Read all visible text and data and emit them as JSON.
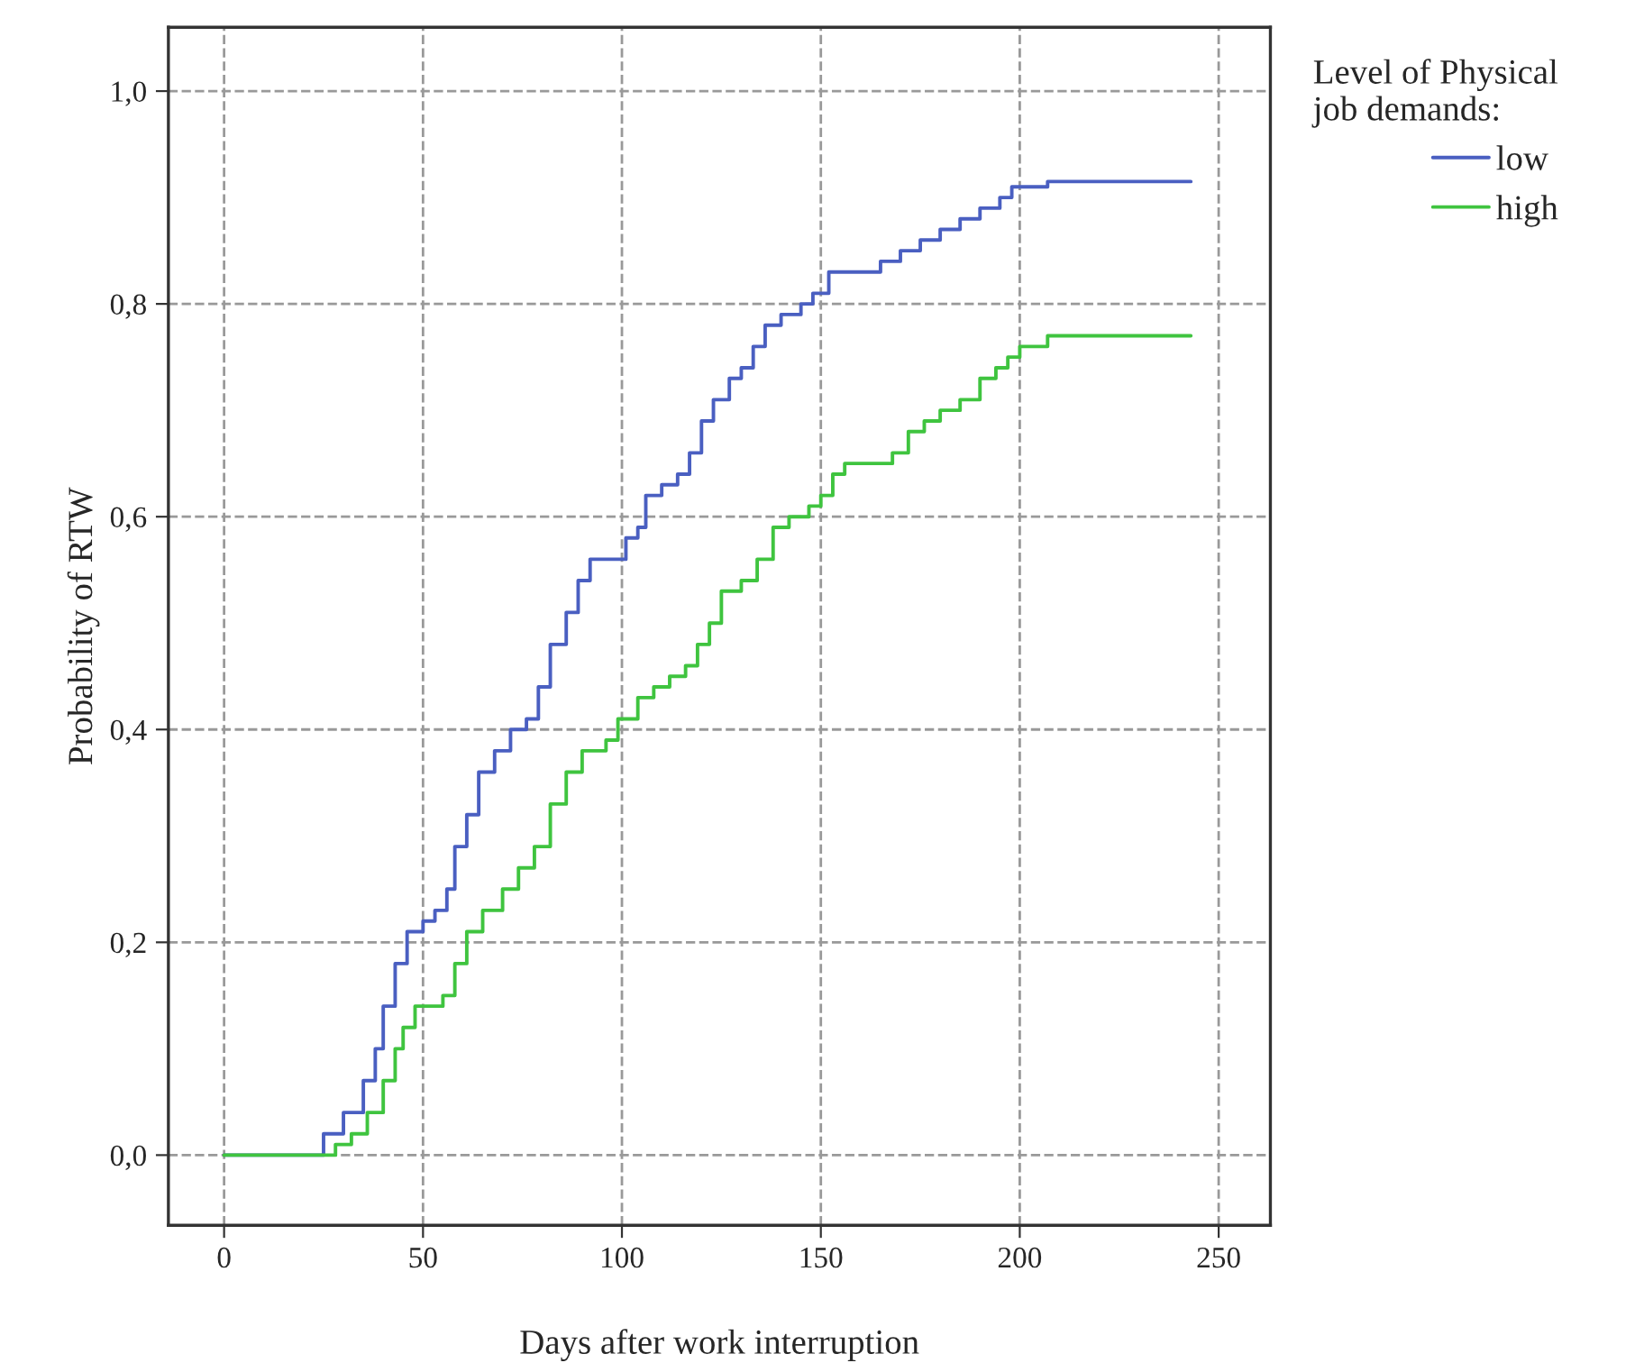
{
  "chart_data": {
    "type": "step",
    "xlabel": "Days after work interruption",
    "ylabel": "Probability of RTW",
    "legend_title": "Level of Physical\njob demands:",
    "legend": "top right",
    "grid": true,
    "xlim": [
      -14,
      263
    ],
    "xticks": [
      0,
      50,
      100,
      150,
      200,
      250
    ],
    "ylim": [
      -0.066,
      1.06
    ],
    "yticks": [
      {
        "value": 0,
        "label": "0,0"
      },
      {
        "value": 0.2,
        "label": "0,2"
      },
      {
        "value": 0.4,
        "label": "0,4"
      },
      {
        "value": 0.6,
        "label": "0,6"
      },
      {
        "value": 0.8,
        "label": "0,8"
      },
      {
        "value": 1.0,
        "label": "1,0"
      }
    ],
    "series": [
      {
        "name": "low",
        "color": "#4a5fc1",
        "x": [
          0,
          23,
          25,
          30,
          35,
          38,
          40,
          43,
          46,
          50,
          53,
          56,
          58,
          61,
          64,
          68,
          72,
          76,
          79,
          82,
          86,
          89,
          92,
          99,
          101,
          104,
          106,
          110,
          114,
          117,
          120,
          123,
          127,
          130,
          133,
          136,
          140,
          145,
          148,
          152,
          160,
          165,
          170,
          175,
          180,
          185,
          190,
          195,
          198,
          207,
          243
        ],
        "values": [
          0,
          0,
          0.02,
          0.04,
          0.07,
          0.1,
          0.14,
          0.18,
          0.21,
          0.22,
          0.23,
          0.25,
          0.29,
          0.32,
          0.36,
          0.38,
          0.4,
          0.41,
          0.44,
          0.48,
          0.51,
          0.54,
          0.56,
          0.56,
          0.58,
          0.59,
          0.62,
          0.63,
          0.64,
          0.66,
          0.69,
          0.71,
          0.73,
          0.74,
          0.76,
          0.78,
          0.79,
          0.8,
          0.81,
          0.83,
          0.83,
          0.84,
          0.85,
          0.86,
          0.87,
          0.88,
          0.89,
          0.9,
          0.91,
          0.915,
          0.915
        ]
      },
      {
        "name": "high",
        "color": "#3fc43f",
        "x": [
          0,
          24,
          28,
          32,
          36,
          40,
          43,
          45,
          48,
          52,
          55,
          58,
          61,
          65,
          70,
          74,
          78,
          82,
          86,
          90,
          96,
          99,
          102,
          104,
          108,
          112,
          116,
          119,
          122,
          125,
          130,
          134,
          138,
          142,
          147,
          150,
          153,
          156,
          165,
          168,
          172,
          176,
          180,
          185,
          190,
          194,
          197,
          200,
          207,
          243
        ],
        "values": [
          0,
          0,
          0.01,
          0.02,
          0.04,
          0.07,
          0.1,
          0.12,
          0.14,
          0.14,
          0.15,
          0.18,
          0.21,
          0.23,
          0.25,
          0.27,
          0.29,
          0.33,
          0.36,
          0.38,
          0.39,
          0.41,
          0.41,
          0.43,
          0.44,
          0.45,
          0.46,
          0.48,
          0.5,
          0.53,
          0.54,
          0.56,
          0.59,
          0.6,
          0.61,
          0.62,
          0.64,
          0.65,
          0.65,
          0.66,
          0.68,
          0.69,
          0.7,
          0.71,
          0.73,
          0.74,
          0.75,
          0.76,
          0.77,
          0.77
        ]
      }
    ]
  }
}
